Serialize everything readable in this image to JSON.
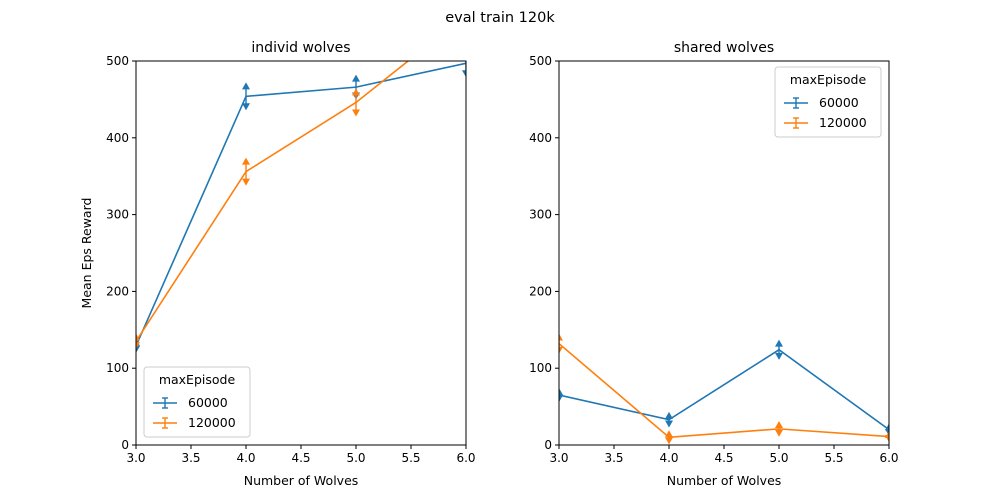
{
  "figure": {
    "suptitle": "eval train 120k"
  },
  "chart_data": [
    {
      "type": "line",
      "title": "individ wolves",
      "xlabel": "Number of Wolves",
      "ylabel": "Mean Eps Reward",
      "xlim": [
        3.0,
        6.0
      ],
      "ylim": [
        0,
        500
      ],
      "xticks": [
        "3.0",
        "3.5",
        "4.0",
        "4.5",
        "5.0",
        "5.5",
        "6.0"
      ],
      "yticks": [
        "0",
        "100",
        "200",
        "300",
        "400",
        "500"
      ],
      "grid": false,
      "legend": {
        "title": "maxEpisode",
        "placement": "lower-left"
      },
      "x": [
        3,
        4,
        5,
        6
      ],
      "series": [
        {
          "name": "60000",
          "color": "#1f77b4",
          "values": [
            129,
            454,
            466,
            497
          ],
          "error": [
            4,
            13,
            11,
            13
          ]
        },
        {
          "name": "120000",
          "color": "#ff7f0e",
          "values": [
            135,
            356,
            446,
            560
          ],
          "error": [
            5,
            13,
            13,
            13
          ]
        }
      ]
    },
    {
      "type": "line",
      "title": "shared wolves",
      "xlabel": "Number of Wolves",
      "ylabel": "",
      "xlim": [
        3.0,
        6.0
      ],
      "ylim": [
        0,
        500
      ],
      "xticks": [
        "3.0",
        "3.5",
        "4.0",
        "4.5",
        "5.0",
        "5.5",
        "6.0"
      ],
      "yticks": [
        "0",
        "100",
        "200",
        "300",
        "400",
        "500"
      ],
      "grid": false,
      "legend": {
        "title": "maxEpisode",
        "placement": "upper-right"
      },
      "x": [
        3,
        4,
        5,
        6
      ],
      "series": [
        {
          "name": "60000",
          "color": "#1f77b4",
          "values": [
            65,
            33,
            124,
            20
          ],
          "error": [
            4,
            5,
            8,
            3
          ]
        },
        {
          "name": "120000",
          "color": "#ff7f0e",
          "values": [
            132,
            10,
            21,
            11
          ],
          "error": [
            8,
            4,
            5,
            2
          ]
        }
      ]
    }
  ]
}
